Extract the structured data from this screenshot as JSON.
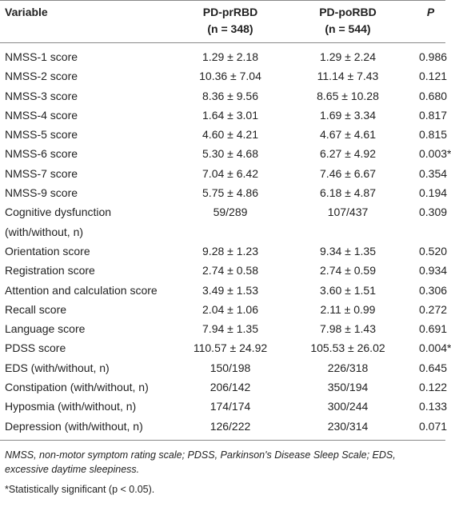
{
  "table": {
    "header": [
      [
        "Variable"
      ],
      [
        "PD-prRBD",
        "(n = 348)"
      ],
      [
        "PD-poRBD",
        "(n = 544)"
      ],
      [
        "P"
      ]
    ],
    "rows": [
      [
        "NMSS-1 score",
        "1.29 ± 2.18",
        "1.29 ± 2.24",
        "0.986"
      ],
      [
        "NMSS-2 score",
        "10.36 ± 7.04",
        "11.14 ± 7.43",
        "0.121"
      ],
      [
        "NMSS-3 score",
        "8.36 ± 9.56",
        "8.65 ± 10.28",
        "0.680"
      ],
      [
        "NMSS-4 score",
        "1.64 ± 3.01",
        "1.69 ± 3.34",
        "0.817"
      ],
      [
        "NMSS-5 score",
        "4.60 ± 4.21",
        "4.67 ± 4.61",
        "0.815"
      ],
      [
        "NMSS-6 score",
        "5.30 ± 4.68",
        "6.27 ± 4.92",
        "0.003*"
      ],
      [
        "NMSS-7 score",
        "7.04 ± 6.42",
        "7.46 ± 6.67",
        "0.354"
      ],
      [
        "NMSS-9 score",
        "5.75 ± 4.86",
        "6.18 ± 4.87",
        "0.194"
      ],
      [
        "Cognitive dysfunction (with/without, n)",
        "59/289",
        "107/437",
        "0.309"
      ],
      [
        "Orientation score",
        "9.28 ± 1.23",
        "9.34 ± 1.35",
        "0.520"
      ],
      [
        "Registration score",
        "2.74 ± 0.58",
        "2.74 ± 0.59",
        "0.934"
      ],
      [
        "Attention and calculation score",
        "3.49 ± 1.53",
        "3.60 ± 1.51",
        "0.306"
      ],
      [
        "Recall score",
        "2.04 ± 1.06",
        "2.11 ± 0.99",
        "0.272"
      ],
      [
        "Language score",
        "7.94 ± 1.35",
        "7.98 ± 1.43",
        "0.691"
      ],
      [
        "PDSS score",
        "110.57 ± 24.92",
        "105.53 ± 26.02",
        "0.004*"
      ],
      [
        "EDS (with/without, n)",
        "150/198",
        "226/318",
        "0.645"
      ],
      [
        "Constipation (with/without, n)",
        "206/142",
        "350/194",
        "0.122"
      ],
      [
        "Hyposmia (with/without, n)",
        "174/174",
        "300/244",
        "0.133"
      ],
      [
        "Depression (with/without, n)",
        "126/222",
        "230/314",
        "0.071"
      ]
    ]
  },
  "footnotes": [
    "NMSS, non-motor symptom rating scale; PDSS, Parkinson's Disease Sleep Scale; EDS, excessive daytime sleepiness.",
    "*Statistically significant (p < 0.05)."
  ]
}
